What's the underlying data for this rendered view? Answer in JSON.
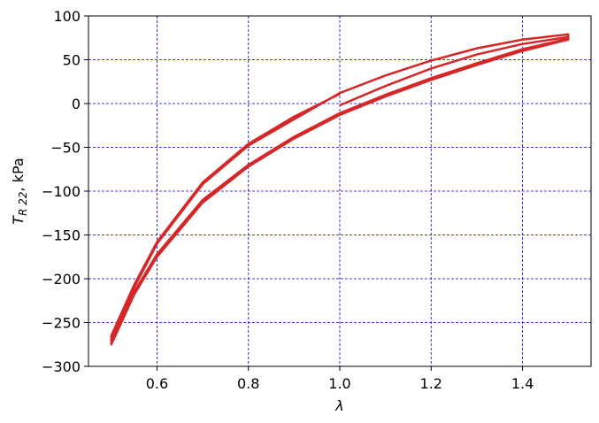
{
  "chart_data": {
    "type": "line",
    "xlabel": "λ",
    "ylabel": {
      "main": "T",
      "subscript": "R 22",
      "suffix": ", kPa"
    },
    "color": "#d62728",
    "grid": true,
    "xlim": [
      0.45,
      1.55
    ],
    "ylim": [
      -300,
      100
    ],
    "xticks": [
      0.6,
      0.8,
      {
        "value": 1,
        "label": "1.0"
      },
      1.2,
      1.4
    ],
    "yticks": [
      {
        "value": -300,
        "label": "−300"
      },
      {
        "value": -250,
        "label": "−250"
      },
      {
        "value": -200,
        "label": "−200"
      },
      {
        "value": -150,
        "label": "−150"
      },
      {
        "value": -100,
        "label": "−100"
      },
      {
        "value": -50,
        "label": "−50"
      },
      0,
      50,
      100
    ],
    "x": [
      1.0,
      1.1,
      1.2,
      1.3,
      1.4,
      1.5,
      1.5,
      1.4,
      1.3,
      1.2,
      1.1,
      1.0,
      0.9,
      0.8,
      0.7,
      0.6,
      0.55,
      0.5,
      0.5,
      0.55,
      0.6,
      0.7,
      0.8,
      0.9,
      1.0,
      1.1,
      1.2,
      1.3,
      1.4,
      1.5,
      1.5,
      1.4,
      1.3,
      1.2,
      1.1,
      1.0,
      0.9,
      0.8,
      0.7,
      0.6,
      0.55,
      0.5,
      0.5,
      0.55,
      0.6,
      0.7,
      0.8,
      0.9,
      1.0
    ],
    "values": [
      -2,
      20,
      40,
      56,
      68,
      76,
      73,
      60,
      44,
      27,
      8,
      -13,
      -40,
      -72,
      -113,
      -175,
      -218,
      -275,
      -268,
      -210,
      -160,
      -92,
      -48,
      -18,
      12,
      32,
      49,
      63,
      73,
      79,
      74,
      62,
      46,
      29,
      10,
      -11,
      -38,
      -70,
      -110,
      -172,
      -215,
      -272,
      -265,
      -207,
      -158,
      -90,
      -46,
      -15,
      11
    ]
  }
}
